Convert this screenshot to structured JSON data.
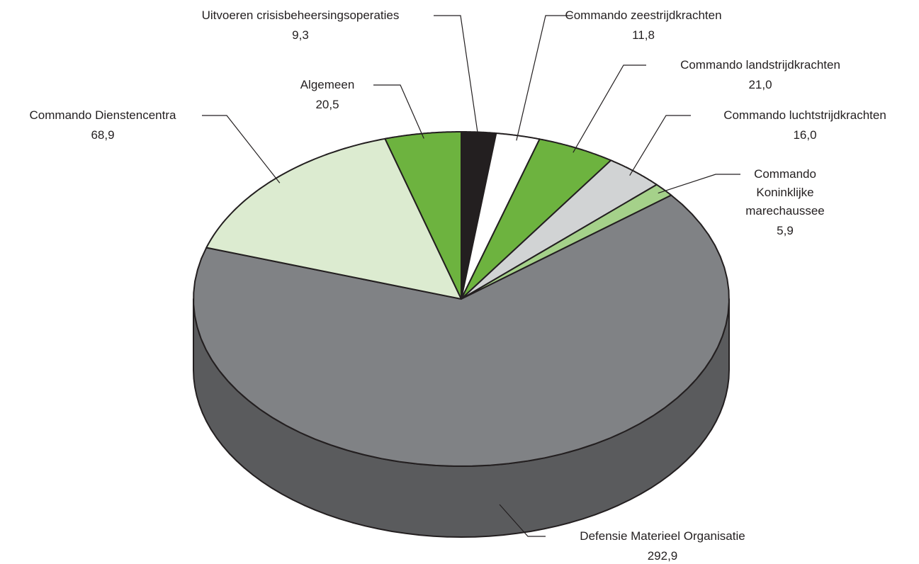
{
  "chart_data": {
    "type": "pie3d",
    "categories": [
      "Uitvoeren crisisbeheersingsoperaties",
      "Commando zeestrijdkrachten",
      "Commando landstrijdkrachten",
      "Commando luchtstrijdkrachten",
      "Commando Koninklijke marechaussee",
      "Defensie Materieel Organisatie",
      "Commando Dienstencentra",
      "Algemeen"
    ],
    "values": [
      9.3,
      11.8,
      21.0,
      16.0,
      5.9,
      292.9,
      68.9,
      20.5
    ],
    "value_labels": [
      "9,3",
      "11,8",
      "21,0",
      "16,0",
      "5,9",
      "292,9",
      "68,9",
      "20,5"
    ],
    "colors": [
      "#231f20",
      "#ffffff",
      "#6db33f",
      "#d1d3d4",
      "#a5d18a",
      "#808285",
      "#dcebd0",
      "#6db33f"
    ]
  }
}
